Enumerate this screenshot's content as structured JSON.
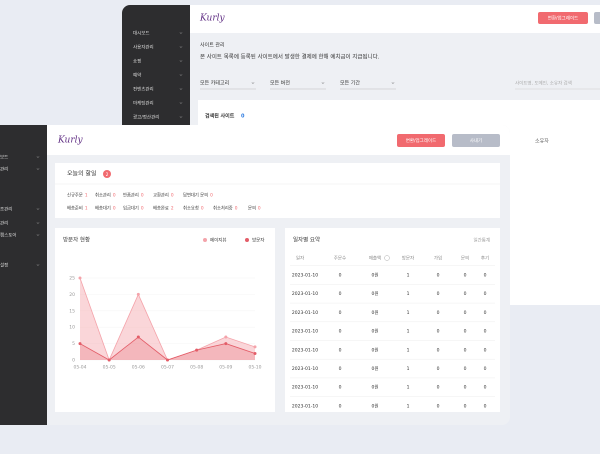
{
  "back_window": {
    "logo": "Kurly",
    "sidebar": [
      "대시보드",
      "사용자관리",
      "쇼핑",
      "예약",
      "컨텐츠관리",
      "마케팅관리",
      "광고/정산관리"
    ],
    "primary_button": "변환/업그레이드",
    "page_title": "사이트 관리",
    "notice": "본 사이트 목록에 등록된 사이트에서 발생한 결제에 한해 예치금이 지급됩니다.",
    "filters": [
      "모든 카테고리",
      "모든 버전",
      "모든 기간"
    ],
    "search_placeholder": "사이트명, 도메인, 소유자 검색",
    "result_label": "검색된 사이트",
    "result_count": 0,
    "column_owner": "소유자"
  },
  "front_window": {
    "logo": "Kurly",
    "sidebar": [
      "보드",
      "관리",
      "조관리",
      "관리",
      "캠스토어",
      "설정"
    ],
    "primary_button": "변환/업그레이드",
    "secondary_button": "사내기",
    "todo": {
      "title": "오늘의 할일",
      "badge": 2,
      "rows": [
        [
          {
            "label": "신규주문",
            "count": 1
          },
          {
            "label": "취소관리",
            "count": 0
          },
          {
            "label": "반품관리",
            "count": 0
          },
          {
            "label": "교환관리",
            "count": 0
          },
          {
            "label": "답변대기 문의",
            "count": 0
          }
        ],
        [
          {
            "label": "배송준비",
            "count": 1
          },
          {
            "label": "배송대기",
            "count": 0
          },
          {
            "label": "입금대기",
            "count": 0
          },
          {
            "label": "배송완료",
            "count": 2
          },
          {
            "label": "취소요청",
            "count": 0
          },
          {
            "label": "취소처리중",
            "count": 0
          },
          {
            "label": "문의",
            "count": 0
          }
        ]
      ]
    },
    "visitor_chart": {
      "type": "line",
      "title": "방문자 현황",
      "categories": [
        "05-04",
        "05-05",
        "05-06",
        "05-07",
        "05-08",
        "05-09",
        "05-10"
      ],
      "series": [
        {
          "name": "페이지뷰",
          "color": "#f4a3aa",
          "values": [
            25,
            0,
            20,
            0,
            3,
            7,
            4
          ]
        },
        {
          "name": "방문자",
          "color": "#e35d68",
          "values": [
            5,
            0,
            7,
            0,
            3,
            5,
            2
          ]
        }
      ],
      "ylim": [
        0,
        25
      ],
      "yticks": [
        0,
        5,
        10,
        15,
        20,
        25
      ]
    },
    "summary": {
      "title": "일자별 요약",
      "link": "일간통계",
      "columns": [
        "일자",
        "주문수",
        "매출액",
        "방문자",
        "가입",
        "문의",
        "후기"
      ],
      "rows": [
        [
          "2023-01-10",
          0,
          "0원",
          1,
          0,
          0,
          0
        ],
        [
          "2023-01-10",
          0,
          "0원",
          1,
          0,
          0,
          0
        ],
        [
          "2023-01-10",
          0,
          "0원",
          1,
          0,
          0,
          0
        ],
        [
          "2023-01-10",
          0,
          "0원",
          1,
          0,
          0,
          0
        ],
        [
          "2023-01-10",
          0,
          "0원",
          1,
          0,
          0,
          0
        ],
        [
          "2023-01-10",
          0,
          "0원",
          1,
          0,
          0,
          0
        ],
        [
          "2023-01-10",
          0,
          "0원",
          1,
          0,
          0,
          0
        ],
        [
          "2023-01-10",
          0,
          "0원",
          1,
          0,
          0,
          0
        ]
      ]
    }
  }
}
